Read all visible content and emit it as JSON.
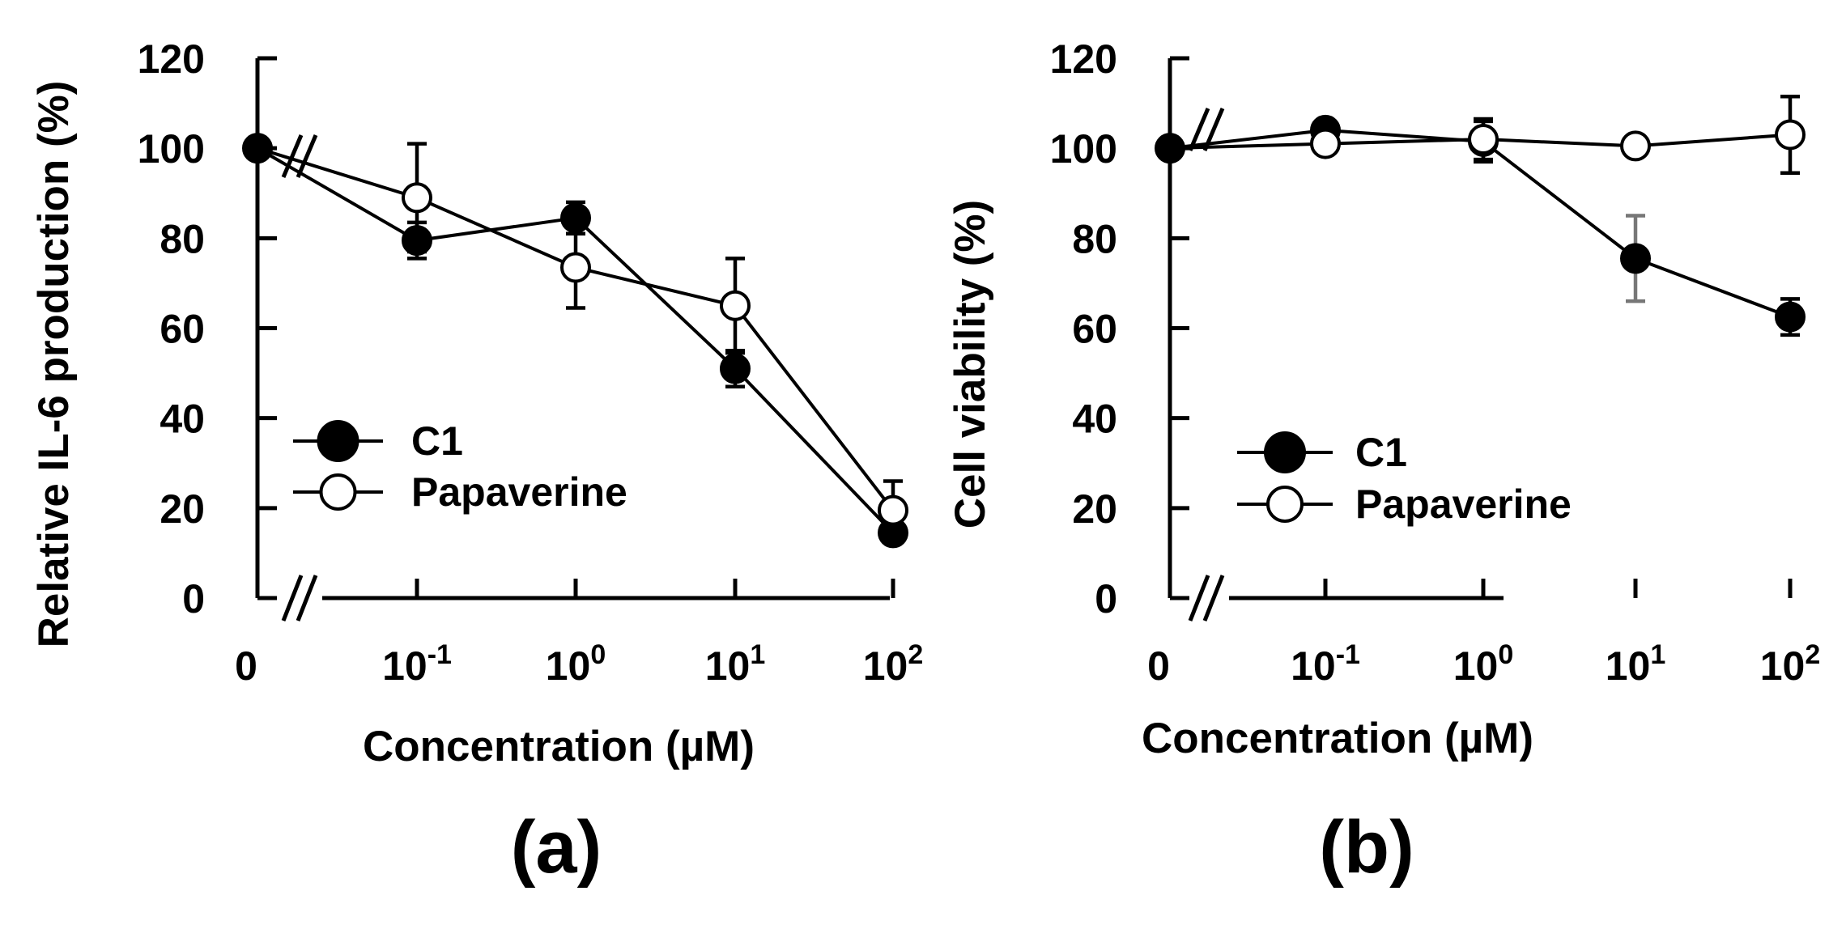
{
  "chart_data": [
    {
      "type": "line",
      "panel_label": "(a)",
      "xlabel": "Concentration (µM)",
      "ylabel": "Relative IL-6 production (%)",
      "ylim": [
        0,
        120
      ],
      "yticks": [
        "0",
        "20",
        "40",
        "60",
        "80",
        "100",
        "120"
      ],
      "xticks": [
        {
          "base": "0",
          "exp": ""
        },
        {
          "base": "10",
          "exp": "-1"
        },
        {
          "base": "10",
          "exp": "0"
        },
        {
          "base": "10",
          "exp": "1"
        },
        {
          "base": "10",
          "exp": "2"
        }
      ],
      "x": [
        0,
        0.1,
        1,
        10,
        100
      ],
      "legend": [
        "C1",
        "Papaverine"
      ],
      "series": [
        {
          "name": "C1",
          "marker": "filled",
          "values": [
            100,
            79.5,
            84.5,
            51,
            14.5
          ],
          "errors": [
            0,
            4,
            3.5,
            4,
            0
          ]
        },
        {
          "name": "Papaverine",
          "marker": "open",
          "values": [
            100,
            89,
            73.5,
            65,
            19.5
          ],
          "errors": [
            0,
            12,
            9,
            10.5,
            6.5
          ]
        }
      ]
    },
    {
      "type": "line",
      "panel_label": "(b)",
      "xlabel": "Concentration (µM)",
      "ylabel": "Cell viability (%)",
      "ylim": [
        0,
        120
      ],
      "yticks": [
        "0",
        "20",
        "40",
        "60",
        "80",
        "100",
        "120"
      ],
      "xticks": [
        {
          "base": "0",
          "exp": ""
        },
        {
          "base": "10",
          "exp": "-1"
        },
        {
          "base": "10",
          "exp": "0"
        },
        {
          "base": "10",
          "exp": "1"
        },
        {
          "base": "10",
          "exp": "2"
        }
      ],
      "x": [
        0,
        0.1,
        1,
        10,
        100
      ],
      "legend": [
        "C1",
        "Papaverine"
      ],
      "series": [
        {
          "name": "C1",
          "marker": "filled",
          "values": [
            100,
            104,
            101.5,
            75.5,
            62.5
          ],
          "errors": [
            0,
            0,
            4.5,
            9.5,
            4
          ]
        },
        {
          "name": "Papaverine",
          "marker": "open",
          "values": [
            100,
            101,
            102,
            100.5,
            103
          ],
          "errors": [
            0,
            0,
            4.5,
            0,
            8.5
          ]
        }
      ]
    }
  ]
}
